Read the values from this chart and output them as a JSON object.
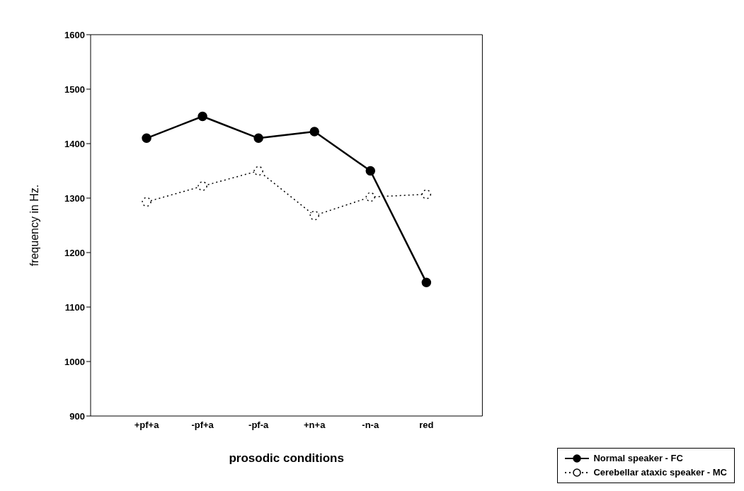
{
  "chart_data": {
    "type": "line",
    "xlabel": "prosodic conditions",
    "ylabel": "frequency in Hz.",
    "categories": [
      "+pf+a",
      "-pf+a",
      "-pf-a",
      "+n+a",
      "-n-a",
      "red"
    ],
    "series": [
      {
        "name": "Normal speaker - FC",
        "color": "#000000",
        "line_style": "solid",
        "values": [
          1410,
          1450,
          1410,
          1422,
          1350,
          1145
        ]
      },
      {
        "name": "Cerebellar ataxic speaker - MC",
        "color": "#000000",
        "line_style": "dotted",
        "values": [
          1293,
          1322,
          1350,
          1268,
          1302,
          1307
        ]
      }
    ],
    "ylim": [
      900,
      1600
    ],
    "yticks": [
      900,
      1000,
      1100,
      1200,
      1300,
      1400,
      1500,
      1600
    ],
    "marker": "circle",
    "legend": "bottom right",
    "grid": false
  }
}
